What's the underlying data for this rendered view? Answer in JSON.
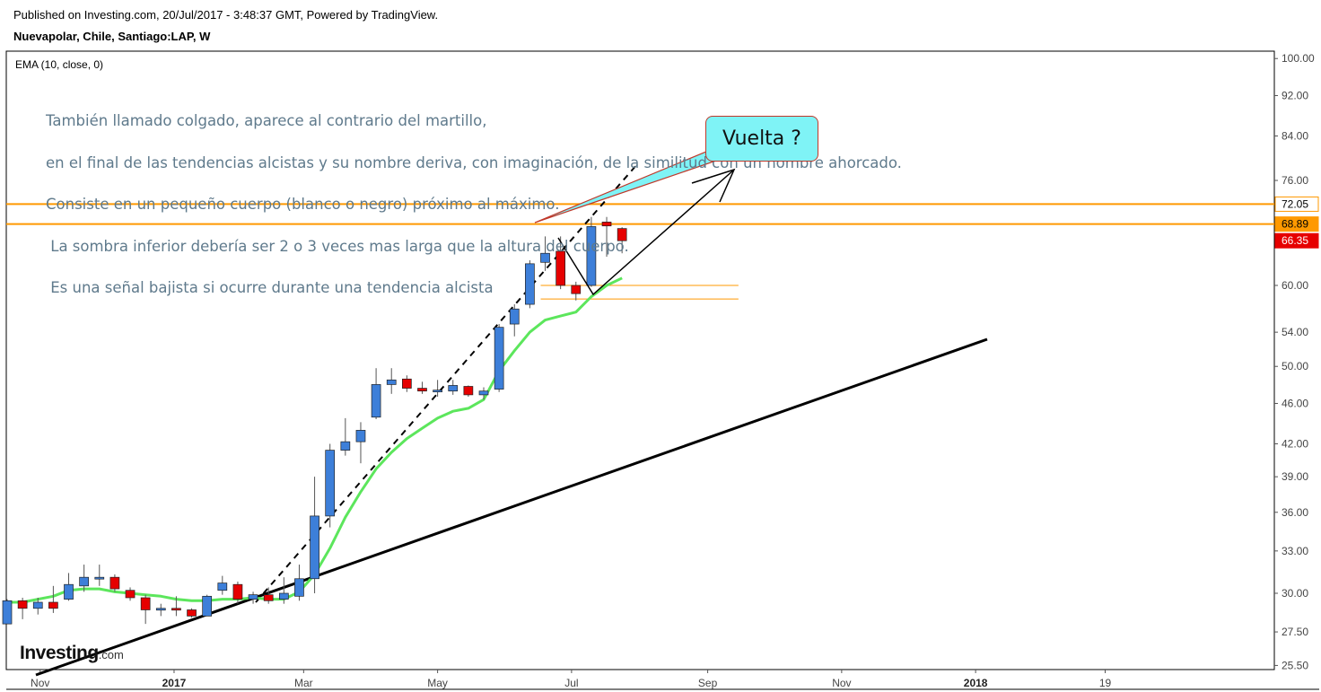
{
  "header": {
    "published": "Published on Investing.com, 20/Jul/2017 - 3:48:37 GMT, Powered by TradingView.",
    "symbol": "Nuevapolar, Chile, Santiago:LAP, W"
  },
  "indicator": {
    "label": "EMA (10, close, 0)",
    "color": "#5ce65c"
  },
  "note": {
    "lines": [
      "También llamado colgado, aparece al contrario del martillo,",
      "en el final de las tendencias alcistas y su nombre deriva, con imaginación, de la similitud con un hombre ahorcado.",
      "Consiste en un pequeño cuerpo (blanco o negro) próximo al máximo.",
      " La sombra inferior debería ser 2 o 3 veces mas larga que la altura del cuerpo.",
      " Es una señal bajista si ocurre durante una tendencia alcista"
    ]
  },
  "callout": {
    "text": "Vuelta ?"
  },
  "logo": {
    "brand": "Investing",
    "domain": ".com"
  },
  "colors": {
    "up": "#3d7fd9",
    "down": "#e60000",
    "level": "#ff9900",
    "ema": "#5ce65c"
  },
  "chart_data": {
    "type": "candlestick",
    "scale": "log",
    "ylim": [
      25.5,
      101
    ],
    "y_ticks": [
      "100.00",
      "92.00",
      "84.00",
      "76.00",
      "60.00",
      "54.00",
      "50.00",
      "46.00",
      "42.00",
      "39.00",
      "36.00",
      "33.00",
      "30.00",
      "27.50",
      "25.50"
    ],
    "x_ticks": [
      "Nov",
      "2017",
      "Mar",
      "May",
      "Jul",
      "Sep",
      "Nov",
      "2018",
      "19"
    ],
    "price_labels": [
      {
        "text": "72.05",
        "value": 72.05,
        "bg": "#ffffff",
        "fg": "#000000"
      },
      {
        "text": "68.89",
        "value": 68.89,
        "bg": "#ff9900",
        "fg": "#000000"
      },
      {
        "text": "66.35",
        "value": 66.35,
        "bg": "#e60000",
        "fg": "#ffffff"
      }
    ],
    "horizontal_levels": [
      72.05,
      68.89
    ],
    "candles": [
      {
        "date": "2016-10-17",
        "o": 28.0,
        "h": 29.6,
        "l": 28.0,
        "c": 29.5
      },
      {
        "date": "2016-10-24",
        "o": 29.5,
        "h": 29.7,
        "l": 28.3,
        "c": 29.0
      },
      {
        "date": "2016-10-31",
        "o": 29.0,
        "h": 29.7,
        "l": 28.6,
        "c": 29.4
      },
      {
        "date": "2016-11-07",
        "o": 29.4,
        "h": 30.5,
        "l": 28.7,
        "c": 29.0
      },
      {
        "date": "2016-11-14",
        "o": 29.6,
        "h": 31.4,
        "l": 29.5,
        "c": 30.6
      },
      {
        "date": "2016-11-21",
        "o": 30.5,
        "h": 32.0,
        "l": 30.1,
        "c": 31.1
      },
      {
        "date": "2016-11-28",
        "o": 31.0,
        "h": 32.0,
        "l": 30.5,
        "c": 31.1
      },
      {
        "date": "2016-12-05",
        "o": 31.1,
        "h": 31.3,
        "l": 30.1,
        "c": 30.3
      },
      {
        "date": "2016-12-12",
        "o": 30.2,
        "h": 30.4,
        "l": 29.5,
        "c": 29.7
      },
      {
        "date": "2016-12-19",
        "o": 29.7,
        "h": 29.9,
        "l": 28.0,
        "c": 28.9
      },
      {
        "date": "2016-12-26",
        "o": 28.9,
        "h": 29.3,
        "l": 28.5,
        "c": 29.0
      },
      {
        "date": "2017-01-02",
        "o": 29.0,
        "h": 29.8,
        "l": 28.5,
        "c": 28.9
      },
      {
        "date": "2017-01-09",
        "o": 28.9,
        "h": 29.0,
        "l": 28.4,
        "c": 28.5
      },
      {
        "date": "2017-01-16",
        "o": 28.5,
        "h": 29.9,
        "l": 28.5,
        "c": 29.8
      },
      {
        "date": "2017-01-23",
        "o": 30.2,
        "h": 31.2,
        "l": 29.9,
        "c": 30.7
      },
      {
        "date": "2017-01-30",
        "o": 30.6,
        "h": 30.8,
        "l": 29.3,
        "c": 29.6
      },
      {
        "date": "2017-02-06",
        "o": 29.6,
        "h": 30.1,
        "l": 29.3,
        "c": 29.9
      },
      {
        "date": "2017-02-13",
        "o": 29.9,
        "h": 30.4,
        "l": 29.3,
        "c": 29.5
      },
      {
        "date": "2017-02-20",
        "o": 29.6,
        "h": 31.1,
        "l": 29.3,
        "c": 30.0
      },
      {
        "date": "2017-02-27",
        "o": 29.8,
        "h": 32.0,
        "l": 29.5,
        "c": 31.0
      },
      {
        "date": "2017-03-06",
        "o": 31.0,
        "h": 39.0,
        "l": 30.0,
        "c": 35.7
      },
      {
        "date": "2017-03-13",
        "o": 35.7,
        "h": 42.0,
        "l": 34.8,
        "c": 41.4
      },
      {
        "date": "2017-03-20",
        "o": 41.4,
        "h": 44.5,
        "l": 40.9,
        "c": 42.2
      },
      {
        "date": "2017-03-27",
        "o": 42.2,
        "h": 44.1,
        "l": 40.2,
        "c": 43.3
      },
      {
        "date": "2017-04-03",
        "o": 44.6,
        "h": 49.8,
        "l": 44.4,
        "c": 48.0
      },
      {
        "date": "2017-04-10",
        "o": 48.0,
        "h": 49.8,
        "l": 47.0,
        "c": 48.5
      },
      {
        "date": "2017-04-17",
        "o": 48.6,
        "h": 49.0,
        "l": 47.2,
        "c": 47.6
      },
      {
        "date": "2017-04-24",
        "o": 47.6,
        "h": 48.3,
        "l": 47.0,
        "c": 47.3
      },
      {
        "date": "2017-05-01",
        "o": 47.3,
        "h": 48.5,
        "l": 46.7,
        "c": 47.4
      },
      {
        "date": "2017-05-08",
        "o": 47.3,
        "h": 48.5,
        "l": 46.9,
        "c": 47.9
      },
      {
        "date": "2017-05-15",
        "o": 47.8,
        "h": 47.9,
        "l": 46.7,
        "c": 46.9
      },
      {
        "date": "2017-05-22",
        "o": 46.9,
        "h": 47.7,
        "l": 46.4,
        "c": 47.3
      },
      {
        "date": "2017-05-29",
        "o": 47.5,
        "h": 55.0,
        "l": 47.2,
        "c": 54.6
      },
      {
        "date": "2017-06-05",
        "o": 55.0,
        "h": 57.5,
        "l": 53.5,
        "c": 56.9
      },
      {
        "date": "2017-06-12",
        "o": 57.5,
        "h": 63.5,
        "l": 57.0,
        "c": 63.0
      },
      {
        "date": "2017-06-19",
        "o": 63.2,
        "h": 67.0,
        "l": 62.0,
        "c": 64.5
      },
      {
        "date": "2017-06-26",
        "o": 64.8,
        "h": 67.0,
        "l": 59.5,
        "c": 60.0
      },
      {
        "date": "2017-07-03",
        "o": 60.0,
        "h": 60.5,
        "l": 58.0,
        "c": 58.9
      },
      {
        "date": "2017-07-10",
        "o": 60.0,
        "h": 70.0,
        "l": 59.8,
        "c": 68.5
      },
      {
        "date": "2017-07-17",
        "o": 69.2,
        "h": 70.0,
        "l": 64.0,
        "c": 68.6
      },
      {
        "date": "2017-07-24",
        "o": 68.2,
        "h": 68.4,
        "l": 64.5,
        "c": 66.35
      }
    ],
    "ema": [
      {
        "date": "2016-10-17",
        "v": 29.4
      },
      {
        "date": "2016-10-24",
        "v": 29.4
      },
      {
        "date": "2016-10-31",
        "v": 29.6
      },
      {
        "date": "2016-11-07",
        "v": 29.8
      },
      {
        "date": "2016-11-14",
        "v": 30.2
      },
      {
        "date": "2016-11-21",
        "v": 30.3
      },
      {
        "date": "2016-11-28",
        "v": 30.3
      },
      {
        "date": "2016-12-05",
        "v": 30.1
      },
      {
        "date": "2016-12-12",
        "v": 30.0
      },
      {
        "date": "2016-12-19",
        "v": 29.9
      },
      {
        "date": "2016-12-26",
        "v": 29.8
      },
      {
        "date": "2017-01-02",
        "v": 29.6
      },
      {
        "date": "2017-01-09",
        "v": 29.5
      },
      {
        "date": "2017-01-16",
        "v": 29.5
      },
      {
        "date": "2017-01-23",
        "v": 29.6
      },
      {
        "date": "2017-01-30",
        "v": 29.6
      },
      {
        "date": "2017-02-06",
        "v": 29.7
      },
      {
        "date": "2017-02-13",
        "v": 29.6
      },
      {
        "date": "2017-02-20",
        "v": 29.6
      },
      {
        "date": "2017-02-27",
        "v": 30.1
      },
      {
        "date": "2017-03-06",
        "v": 31.3
      },
      {
        "date": "2017-03-13",
        "v": 33.2
      },
      {
        "date": "2017-03-20",
        "v": 35.6
      },
      {
        "date": "2017-03-27",
        "v": 37.7
      },
      {
        "date": "2017-04-03",
        "v": 39.7
      },
      {
        "date": "2017-04-10",
        "v": 41.2
      },
      {
        "date": "2017-04-17",
        "v": 42.5
      },
      {
        "date": "2017-04-24",
        "v": 43.5
      },
      {
        "date": "2017-05-01",
        "v": 44.5
      },
      {
        "date": "2017-05-08",
        "v": 45.2
      },
      {
        "date": "2017-05-15",
        "v": 45.5
      },
      {
        "date": "2017-05-22",
        "v": 46.4
      },
      {
        "date": "2017-05-29",
        "v": 49.5
      },
      {
        "date": "2017-06-05",
        "v": 51.8
      },
      {
        "date": "2017-06-12",
        "v": 54.0
      },
      {
        "date": "2017-06-19",
        "v": 55.5
      },
      {
        "date": "2017-06-26",
        "v": 56.0
      },
      {
        "date": "2017-07-03",
        "v": 56.5
      },
      {
        "date": "2017-07-10",
        "v": 58.5
      },
      {
        "date": "2017-07-17",
        "v": 60.0
      },
      {
        "date": "2017-07-24",
        "v": 61.0
      }
    ]
  }
}
